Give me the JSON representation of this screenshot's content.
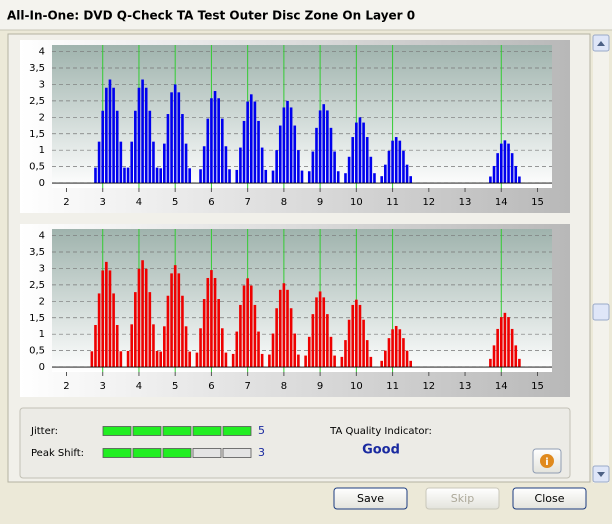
{
  "window": {
    "title": "All-In-One: DVD Q-Check TA Test Outer Disc Zone On Layer 0"
  },
  "chart_data": [
    {
      "type": "bar",
      "color": "#0000ee",
      "reference_color": "#33cc33",
      "grid": true,
      "xlim": [
        1.6,
        15.4
      ],
      "ylim": [
        -0.15,
        4.2
      ],
      "xticks": [
        2,
        3,
        4,
        5,
        6,
        7,
        8,
        9,
        10,
        11,
        12,
        13,
        14,
        15
      ],
      "yticks": [
        0,
        {
          "value": 0.5,
          "label": "0,5"
        },
        1,
        {
          "value": 1.5,
          "label": "1,5"
        },
        2,
        {
          "value": 2.5,
          "label": "2,5"
        },
        3,
        {
          "value": 3.5,
          "label": "3,5"
        },
        4
      ],
      "reference_lines": [
        3,
        4,
        5,
        6,
        7,
        8,
        9,
        10,
        11,
        14
      ],
      "x": [
        2.8,
        2.9,
        3.0,
        3.1,
        3.2,
        3.3,
        3.4,
        3.5,
        3.6,
        3.7,
        3.8,
        3.9,
        4.0,
        4.1,
        4.2,
        4.3,
        4.4,
        4.5,
        4.6,
        4.7,
        4.8,
        4.9,
        5.0,
        5.1,
        5.2,
        5.3,
        5.4,
        5.7,
        5.8,
        5.9,
        6.0,
        6.1,
        6.2,
        6.3,
        6.4,
        6.5,
        6.7,
        6.8,
        6.9,
        7.0,
        7.1,
        7.2,
        7.3,
        7.4,
        7.5,
        7.7,
        7.8,
        7.9,
        8.0,
        8.1,
        8.2,
        8.3,
        8.4,
        8.5,
        8.7,
        8.8,
        8.9,
        9.0,
        9.1,
        9.2,
        9.3,
        9.4,
        9.5,
        9.7,
        9.8,
        9.9,
        10.0,
        10.1,
        10.2,
        10.3,
        10.4,
        10.5,
        10.7,
        10.8,
        10.9,
        11.0,
        11.1,
        11.2,
        11.3,
        11.4,
        11.5,
        13.7,
        13.8,
        13.9,
        14.0,
        14.1,
        14.2,
        14.3,
        14.4,
        14.5
      ],
      "values": [
        0.47,
        1.26,
        2.2,
        2.9,
        3.15,
        2.9,
        2.2,
        1.26,
        0.47,
        0.47,
        1.26,
        2.2,
        2.9,
        3.15,
        2.9,
        2.2,
        1.26,
        0.47,
        0.45,
        1.2,
        2.1,
        2.76,
        3.0,
        2.76,
        2.1,
        1.2,
        0.45,
        0.42,
        1.12,
        1.96,
        2.58,
        2.8,
        2.58,
        1.96,
        1.12,
        0.42,
        0.4,
        1.08,
        1.89,
        2.48,
        2.7,
        2.48,
        1.89,
        1.08,
        0.4,
        0.38,
        1.0,
        1.75,
        2.3,
        2.5,
        2.3,
        1.75,
        1.0,
        0.38,
        0.36,
        0.96,
        1.68,
        2.21,
        2.4,
        2.21,
        1.68,
        0.96,
        0.36,
        0.3,
        0.8,
        1.4,
        1.84,
        2.0,
        1.84,
        1.4,
        0.8,
        0.3,
        0.21,
        0.56,
        0.98,
        1.29,
        1.4,
        1.29,
        0.98,
        0.56,
        0.21,
        0.2,
        0.52,
        0.91,
        1.2,
        1.3,
        1.2,
        0.91,
        0.52,
        0.2
      ]
    },
    {
      "type": "bar",
      "color": "#ee0000",
      "reference_color": "#33cc33",
      "grid": true,
      "xlim": [
        1.6,
        15.4
      ],
      "ylim": [
        -0.15,
        4.2
      ],
      "xticks": [
        2,
        3,
        4,
        5,
        6,
        7,
        8,
        9,
        10,
        11,
        12,
        13,
        14,
        15
      ],
      "yticks": [
        0,
        {
          "value": 0.5,
          "label": "0,5"
        },
        1,
        {
          "value": 1.5,
          "label": "1,5"
        },
        2,
        {
          "value": 2.5,
          "label": "2,5"
        },
        3,
        {
          "value": 3.5,
          "label": "3,5"
        },
        4
      ],
      "reference_lines": [
        3,
        4,
        5,
        6,
        7,
        8,
        9,
        10,
        11,
        14
      ],
      "x": [
        2.7,
        2.8,
        2.9,
        3.0,
        3.1,
        3.2,
        3.3,
        3.4,
        3.5,
        3.7,
        3.8,
        3.9,
        4.0,
        4.1,
        4.2,
        4.3,
        4.4,
        4.5,
        4.6,
        4.7,
        4.8,
        4.9,
        5.0,
        5.1,
        5.2,
        5.3,
        5.4,
        5.6,
        5.7,
        5.8,
        5.9,
        6.0,
        6.1,
        6.2,
        6.3,
        6.4,
        6.6,
        6.7,
        6.8,
        6.9,
        7.0,
        7.1,
        7.2,
        7.3,
        7.4,
        7.6,
        7.7,
        7.8,
        7.9,
        8.0,
        8.1,
        8.2,
        8.3,
        8.4,
        8.6,
        8.7,
        8.8,
        8.9,
        9.0,
        9.1,
        9.2,
        9.3,
        9.4,
        9.6,
        9.7,
        9.8,
        9.9,
        10.0,
        10.1,
        10.2,
        10.3,
        10.4,
        10.7,
        10.8,
        10.9,
        11.0,
        11.1,
        11.2,
        11.3,
        11.4,
        11.5,
        13.7,
        13.8,
        13.9,
        14.0,
        14.1,
        14.2,
        14.3,
        14.4,
        14.5
      ],
      "values": [
        0.48,
        1.28,
        2.24,
        2.94,
        3.2,
        2.94,
        2.24,
        1.28,
        0.48,
        0.49,
        1.3,
        2.28,
        2.99,
        3.25,
        2.99,
        2.28,
        1.3,
        0.49,
        0.47,
        1.24,
        2.17,
        2.85,
        3.1,
        2.85,
        2.17,
        1.24,
        0.47,
        0.44,
        1.18,
        2.07,
        2.71,
        2.95,
        2.71,
        2.07,
        1.18,
        0.44,
        0.4,
        1.08,
        1.89,
        2.48,
        2.7,
        2.48,
        1.89,
        1.08,
        0.4,
        0.38,
        1.02,
        1.79,
        2.35,
        2.55,
        2.35,
        1.79,
        1.02,
        0.38,
        0.35,
        0.92,
        1.61,
        2.12,
        2.3,
        2.12,
        1.61,
        0.92,
        0.35,
        0.31,
        0.82,
        1.44,
        1.89,
        2.05,
        1.89,
        1.44,
        0.82,
        0.31,
        0.19,
        0.5,
        0.88,
        1.15,
        1.25,
        1.15,
        0.88,
        0.5,
        0.19,
        0.25,
        0.66,
        1.16,
        1.52,
        1.65,
        1.52,
        1.16,
        0.66,
        0.25
      ]
    }
  ],
  "quality": {
    "jitter": {
      "label": "Jitter:",
      "value": 5
    },
    "peak_shift": {
      "label": "Peak Shift:",
      "value": 3
    },
    "indicator": {
      "label": "TA Quality Indicator:",
      "value": "Good"
    }
  },
  "buttons": [
    "Save",
    "Skip",
    "Close"
  ]
}
